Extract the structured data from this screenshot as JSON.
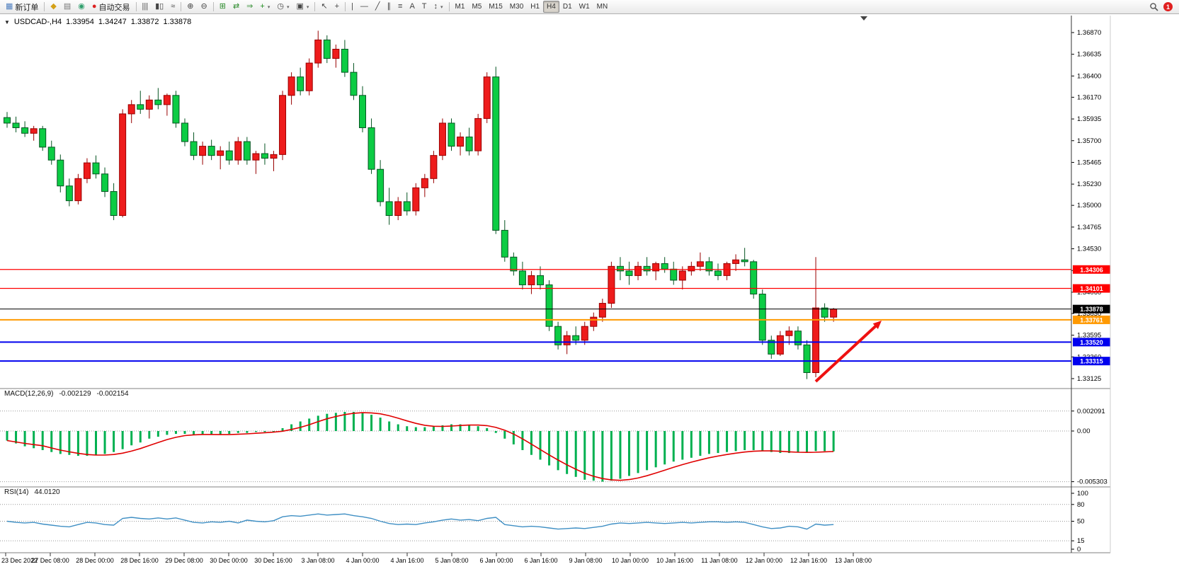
{
  "toolbar": {
    "notification_count": "1",
    "items": [
      {
        "type": "btn",
        "name": "new-order",
        "glyph": "▦",
        "glyph_color": "#4f7fbf",
        "label": "新订单"
      },
      {
        "type": "sep"
      },
      {
        "type": "ico",
        "name": "signals",
        "glyph": "◆",
        "glyph_color": "#d4a017"
      },
      {
        "type": "ico",
        "name": "print",
        "glyph": "▤",
        "glyph_color": "#777777"
      },
      {
        "type": "ico",
        "name": "news",
        "glyph": "◉",
        "glyph_color": "#2e9e6b"
      },
      {
        "type": "btn",
        "name": "auto-trading",
        "glyph": "●",
        "glyph_color": "#dd2222",
        "label": "自动交易"
      },
      {
        "type": "sep"
      },
      {
        "type": "ico",
        "name": "bar-chart",
        "glyph": "|||"
      },
      {
        "type": "ico",
        "name": "candlestick-chart",
        "glyph": "▮▯"
      },
      {
        "type": "ico",
        "name": "line-chart",
        "glyph": "≈"
      },
      {
        "type": "sep"
      },
      {
        "type": "ico",
        "name": "zoom-in",
        "glyph": "⊕"
      },
      {
        "type": "ico",
        "name": "zoom-out",
        "glyph": "⊖"
      },
      {
        "type": "sep"
      },
      {
        "type": "ico",
        "name": "tile-windows",
        "glyph": "⊞",
        "glyph_color": "#2a8a2a"
      },
      {
        "type": "ico",
        "name": "auto-scroll",
        "glyph": "⇄",
        "glyph_color": "#2a8a2a"
      },
      {
        "type": "ico",
        "name": "chart-shift",
        "glyph": "⇒",
        "glyph_color": "#2a8a2a"
      },
      {
        "type": "ico",
        "name": "new-chart",
        "glyph": "+",
        "glyph_color": "#1c8a1c",
        "dd": true
      },
      {
        "type": "ico",
        "name": "periods",
        "glyph": "◷",
        "dd": true
      },
      {
        "type": "ico",
        "name": "templates",
        "glyph": "▣",
        "dd": true
      },
      {
        "type": "sep"
      },
      {
        "type": "ico",
        "name": "cursor",
        "glyph": "↖"
      },
      {
        "type": "ico",
        "name": "crosshair",
        "glyph": "+"
      },
      {
        "type": "sep"
      },
      {
        "type": "ico",
        "name": "vertical-line",
        "glyph": "|"
      },
      {
        "type": "ico",
        "name": "horizontal-line",
        "glyph": "—"
      },
      {
        "type": "ico",
        "name": "trendline",
        "glyph": "╱"
      },
      {
        "type": "ico",
        "name": "equidistant-channel",
        "glyph": "∥"
      },
      {
        "type": "ico",
        "name": "fibonacci",
        "glyph": "≡"
      },
      {
        "type": "ico",
        "name": "text",
        "glyph": "A"
      },
      {
        "type": "ico",
        "name": "text-label",
        "glyph": "T"
      },
      {
        "type": "ico",
        "name": "arrows",
        "glyph": "↕",
        "dd": true
      },
      {
        "type": "sep"
      },
      {
        "type": "tf",
        "name": "timeframe-m1",
        "label": "M1"
      },
      {
        "type": "tf",
        "name": "timeframe-m5",
        "label": "M5"
      },
      {
        "type": "tf",
        "name": "timeframe-m15",
        "label": "M15"
      },
      {
        "type": "tf",
        "name": "timeframe-m30",
        "label": "M30"
      },
      {
        "type": "tf",
        "name": "timeframe-h1",
        "label": "H1"
      },
      {
        "type": "tf",
        "name": "timeframe-h4",
        "label": "H4",
        "active": true
      },
      {
        "type": "tf",
        "name": "timeframe-d1",
        "label": "D1"
      },
      {
        "type": "tf",
        "name": "timeframe-w1",
        "label": "W1"
      },
      {
        "type": "tf",
        "name": "timeframe-mn",
        "label": "MN"
      }
    ]
  },
  "chart": {
    "marker": "▼",
    "symbol_period": "USDCAD-,H4",
    "open": "1.33954",
    "high": "1.34247",
    "low": "1.33872",
    "close": "1.33878"
  },
  "macd": {
    "label": "MACD(12,26,9)",
    "value_main": "-0.002129",
    "value_signal": "-0.002154",
    "axis": [
      "0.002091",
      "0.00",
      "-0.005303"
    ]
  },
  "rsi": {
    "label": "RSI(14)",
    "value": "44.0120",
    "axis": [
      "100",
      "80",
      "50",
      "15",
      "0"
    ]
  },
  "chart_data": {
    "type": "candlestick",
    "symbol": "USDCAD-",
    "timeframe": "H4",
    "ohlc_current": {
      "open": 1.33954,
      "high": 1.34247,
      "low": 1.33872,
      "close": 1.33878
    },
    "price_axis_labels": [
      "1.36870",
      "1.36635",
      "1.36400",
      "1.36170",
      "1.35935",
      "1.35700",
      "1.35465",
      "1.35230",
      "1.35000",
      "1.34765",
      "1.34530",
      "1.34295",
      "1.34060",
      "1.33830",
      "1.33595",
      "1.33360",
      "1.33125"
    ],
    "time_axis_labels": [
      "23 Dec 2022",
      "27 Dec 08:00",
      "28 Dec 00:00",
      "28 Dec 16:00",
      "29 Dec 08:00",
      "30 Dec 00:00",
      "30 Dec 16:00",
      "3 Jan 08:00",
      "4 Jan 00:00",
      "4 Jan 16:00",
      "5 Jan 08:00",
      "6 Jan 00:00",
      "6 Jan 16:00",
      "9 Jan 08:00",
      "10 Jan 00:00",
      "10 Jan 16:00",
      "11 Jan 08:00",
      "12 Jan 00:00",
      "12 Jan 16:00",
      "13 Jan 08:00"
    ],
    "levels": [
      {
        "name": "resistance-line-upper",
        "price": 1.34306,
        "label": "1.34306",
        "color": "#ff0000",
        "width": 1.2
      },
      {
        "name": "resistance-line-lower",
        "price": 1.34101,
        "label": "1.34101",
        "color": "#ff0000",
        "width": 1.2
      },
      {
        "name": "current-price-line",
        "price": 1.33878,
        "label": "1.33878",
        "color": "#000000",
        "width": 1
      },
      {
        "name": "pivot-line-orange",
        "price": 1.33761,
        "label": "1.33761",
        "color": "#ff9900",
        "width": 2
      },
      {
        "name": "support-line-upper",
        "price": 1.3352,
        "label": "1.33520",
        "color": "#0000ee",
        "width": 2
      },
      {
        "name": "support-line-lower",
        "price": 1.33315,
        "label": "1.33315",
        "color": "#0000ee",
        "width": 2
      }
    ],
    "candles": [
      [
        1.3595,
        1.3601,
        1.3584,
        1.3589
      ],
      [
        1.3589,
        1.3596,
        1.3579,
        1.3584
      ],
      [
        1.3584,
        1.3591,
        1.3574,
        1.3578
      ],
      [
        1.3578,
        1.3586,
        1.357,
        1.3583
      ],
      [
        1.3583,
        1.3586,
        1.3559,
        1.3563
      ],
      [
        1.3563,
        1.357,
        1.3544,
        1.3549
      ],
      [
        1.3549,
        1.3555,
        1.3514,
        1.3521
      ],
      [
        1.3521,
        1.3529,
        1.3499,
        1.3505
      ],
      [
        1.3505,
        1.3534,
        1.3501,
        1.3529
      ],
      [
        1.3529,
        1.3551,
        1.3524,
        1.3546
      ],
      [
        1.3546,
        1.3554,
        1.3529,
        1.3534
      ],
      [
        1.3534,
        1.3541,
        1.3509,
        1.3515
      ],
      [
        1.3515,
        1.3524,
        1.3484,
        1.3489
      ],
      [
        1.3489,
        1.3604,
        1.3487,
        1.3599
      ],
      [
        1.3599,
        1.3614,
        1.3589,
        1.3609
      ],
      [
        1.3609,
        1.3624,
        1.3599,
        1.3604
      ],
      [
        1.3604,
        1.3619,
        1.3594,
        1.3614
      ],
      [
        1.3614,
        1.3627,
        1.3604,
        1.3609
      ],
      [
        1.3609,
        1.3621,
        1.3597,
        1.3619
      ],
      [
        1.3619,
        1.3624,
        1.3584,
        1.3589
      ],
      [
        1.3589,
        1.3594,
        1.3564,
        1.3569
      ],
      [
        1.3569,
        1.3579,
        1.3549,
        1.3554
      ],
      [
        1.3554,
        1.3569,
        1.3544,
        1.3564
      ],
      [
        1.3564,
        1.3571,
        1.3549,
        1.3554
      ],
      [
        1.3554,
        1.3564,
        1.3539,
        1.3559
      ],
      [
        1.3559,
        1.3569,
        1.3544,
        1.3549
      ],
      [
        1.3549,
        1.3574,
        1.3544,
        1.3569
      ],
      [
        1.3569,
        1.3574,
        1.3544,
        1.3549
      ],
      [
        1.3549,
        1.3559,
        1.3534,
        1.3556
      ],
      [
        1.3556,
        1.3567,
        1.3544,
        1.3551
      ],
      [
        1.3551,
        1.3559,
        1.3537,
        1.3555
      ],
      [
        1.3555,
        1.3624,
        1.3549,
        1.3619
      ],
      [
        1.3619,
        1.3644,
        1.3609,
        1.3639
      ],
      [
        1.3639,
        1.3649,
        1.3619,
        1.3624
      ],
      [
        1.3624,
        1.3659,
        1.3619,
        1.3654
      ],
      [
        1.3654,
        1.3689,
        1.3649,
        1.3679
      ],
      [
        1.3679,
        1.3684,
        1.3654,
        1.3659
      ],
      [
        1.3659,
        1.3674,
        1.3649,
        1.3669
      ],
      [
        1.3669,
        1.3679,
        1.3639,
        1.3644
      ],
      [
        1.3644,
        1.3654,
        1.3614,
        1.3619
      ],
      [
        1.3619,
        1.3629,
        1.3579,
        1.3584
      ],
      [
        1.3584,
        1.3594,
        1.3534,
        1.3539
      ],
      [
        1.3539,
        1.3549,
        1.3499,
        1.3504
      ],
      [
        1.3504,
        1.3519,
        1.3479,
        1.3489
      ],
      [
        1.3489,
        1.3509,
        1.3484,
        1.3504
      ],
      [
        1.3504,
        1.3514,
        1.3489,
        1.3494
      ],
      [
        1.3494,
        1.3524,
        1.3489,
        1.3519
      ],
      [
        1.3519,
        1.3534,
        1.3509,
        1.3529
      ],
      [
        1.3529,
        1.3559,
        1.3524,
        1.3554
      ],
      [
        1.3554,
        1.3594,
        1.3549,
        1.3589
      ],
      [
        1.3589,
        1.3594,
        1.3559,
        1.3564
      ],
      [
        1.3564,
        1.3579,
        1.3554,
        1.3574
      ],
      [
        1.3574,
        1.3584,
        1.3554,
        1.3559
      ],
      [
        1.3559,
        1.3599,
        1.3554,
        1.3594
      ],
      [
        1.3594,
        1.3644,
        1.3589,
        1.3639
      ],
      [
        1.3639,
        1.365,
        1.3469,
        1.3473
      ],
      [
        1.3473,
        1.3484,
        1.3439,
        1.3444
      ],
      [
        1.3444,
        1.3449,
        1.3424,
        1.3429
      ],
      [
        1.3429,
        1.3439,
        1.3409,
        1.3414
      ],
      [
        1.3414,
        1.3429,
        1.3404,
        1.3424
      ],
      [
        1.3424,
        1.3434,
        1.3409,
        1.3414
      ],
      [
        1.3414,
        1.3419,
        1.3364,
        1.3369
      ],
      [
        1.3369,
        1.3374,
        1.3344,
        1.3349
      ],
      [
        1.3349,
        1.3364,
        1.3339,
        1.3359
      ],
      [
        1.3359,
        1.3369,
        1.3349,
        1.3354
      ],
      [
        1.3354,
        1.3374,
        1.3349,
        1.3369
      ],
      [
        1.3369,
        1.3384,
        1.3364,
        1.3379
      ],
      [
        1.3379,
        1.3399,
        1.3374,
        1.3394
      ],
      [
        1.3394,
        1.3439,
        1.3389,
        1.3434
      ],
      [
        1.3434,
        1.3444,
        1.3419,
        1.3429
      ],
      [
        1.3429,
        1.3439,
        1.3414,
        1.3424
      ],
      [
        1.3424,
        1.3439,
        1.3419,
        1.3434
      ],
      [
        1.3434,
        1.3444,
        1.3424,
        1.3429
      ],
      [
        1.3429,
        1.3439,
        1.3419,
        1.3437
      ],
      [
        1.3437,
        1.3444,
        1.3427,
        1.3431
      ],
      [
        1.3431,
        1.3439,
        1.3414,
        1.3419
      ],
      [
        1.3419,
        1.3434,
        1.3409,
        1.3429
      ],
      [
        1.3429,
        1.3439,
        1.3424,
        1.3434
      ],
      [
        1.3434,
        1.3449,
        1.3429,
        1.3439
      ],
      [
        1.3439,
        1.3444,
        1.3424,
        1.3429
      ],
      [
        1.3429,
        1.3437,
        1.3419,
        1.3424
      ],
      [
        1.3424,
        1.3439,
        1.3419,
        1.3437
      ],
      [
        1.3437,
        1.3447,
        1.3429,
        1.3441
      ],
      [
        1.3441,
        1.3454,
        1.3434,
        1.3439
      ],
      [
        1.3439,
        1.3441,
        1.3399,
        1.3404
      ],
      [
        1.3404,
        1.3409,
        1.3349,
        1.3354
      ],
      [
        1.3354,
        1.3359,
        1.3334,
        1.3339
      ],
      [
        1.3339,
        1.3364,
        1.3337,
        1.3359
      ],
      [
        1.3359,
        1.3369,
        1.3349,
        1.3364
      ],
      [
        1.3364,
        1.3369,
        1.3344,
        1.3349
      ],
      [
        1.3349,
        1.3354,
        1.3312,
        1.3319
      ],
      [
        1.3319,
        1.3444,
        1.3314,
        1.3389
      ],
      [
        1.3389,
        1.3394,
        1.3374,
        1.3379
      ],
      [
        1.3379,
        1.3389,
        1.3374,
        1.33878
      ]
    ],
    "macd_histogram": [
      -0.001,
      -0.0013,
      -0.0016,
      -0.0018,
      -0.002,
      -0.0022,
      -0.0024,
      -0.0025,
      -0.0026,
      -0.0026,
      -0.0025,
      -0.0024,
      -0.0022,
      -0.0019,
      -0.0015,
      -0.0012,
      -0.0008,
      -0.0006,
      -0.0004,
      -0.0003,
      -0.0003,
      -0.0004,
      -0.0004,
      -0.0004,
      -0.0004,
      -0.0003,
      -0.0002,
      -0.0002,
      -0.0001,
      -0.0001,
      0.0,
      0.0003,
      0.0007,
      0.001,
      0.0013,
      0.0016,
      0.0018,
      0.0019,
      0.002,
      0.002,
      0.0019,
      0.0017,
      0.0014,
      0.001,
      0.0007,
      0.0005,
      0.0004,
      0.0004,
      0.0005,
      0.0006,
      0.0007,
      0.0007,
      0.0006,
      0.0005,
      0.0003,
      -0.0002,
      -0.0008,
      -0.0014,
      -0.002,
      -0.0025,
      -0.003,
      -0.0036,
      -0.0041,
      -0.0045,
      -0.0048,
      -0.0051,
      -0.0052,
      -0.0053,
      -0.0052,
      -0.005,
      -0.0047,
      -0.0044,
      -0.0041,
      -0.0038,
      -0.0035,
      -0.0032,
      -0.003,
      -0.0028,
      -0.0026,
      -0.0024,
      -0.0023,
      -0.0022,
      -0.0021,
      -0.002,
      -0.002,
      -0.0021,
      -0.0022,
      -0.0023,
      -0.0023,
      -0.0022,
      -0.0022,
      -0.0021,
      -0.0021,
      -0.002129
    ],
    "rsi_values": [
      50,
      48,
      47,
      48,
      45,
      43,
      41,
      40,
      44,
      48,
      47,
      44,
      43,
      55,
      57,
      55,
      54,
      56,
      54,
      56,
      52,
      48,
      47,
      49,
      48,
      50,
      47,
      52,
      50,
      49,
      51,
      58,
      60,
      59,
      61,
      63,
      61,
      62,
      63,
      60,
      58,
      55,
      50,
      46,
      44,
      45,
      44,
      47,
      49,
      52,
      54,
      52,
      53,
      51,
      55,
      57,
      44,
      42,
      40,
      41,
      40,
      38,
      36,
      37,
      38,
      37,
      39,
      41,
      45,
      47,
      46,
      47,
      48,
      47,
      46,
      47,
      48,
      47,
      48,
      49,
      49,
      48,
      49,
      48,
      44,
      40,
      37,
      38,
      41,
      40,
      36,
      45,
      43,
      44.012
    ],
    "annotations": [
      {
        "type": "arrow",
        "name": "buy-signal-arrow",
        "color": "#ee1111",
        "from": [
          1152,
          519
        ],
        "to": [
          1245,
          433
        ]
      }
    ],
    "colors": {
      "up": "#ee1c1c",
      "up_stroke": "#990000",
      "down": "#0ccc44",
      "down_stroke": "#065522",
      "macd_histogram": "#00b050",
      "macd_signal": "#e00000",
      "rsi_line": "#3f8fc4"
    }
  }
}
